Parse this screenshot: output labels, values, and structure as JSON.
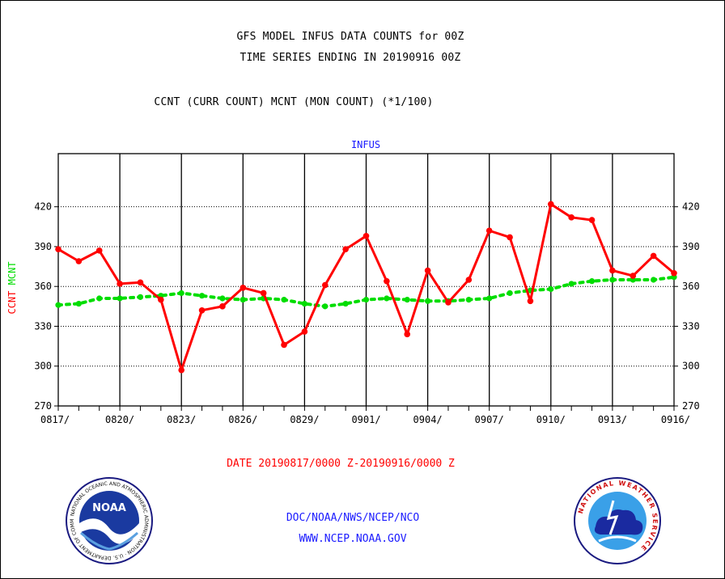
{
  "header": {
    "line1": "GFS MODEL INFUS DATA COUNTS for 00Z",
    "line2": "TIME SERIES ENDING IN 20190916 00Z",
    "line3": "CCNT (CURR COUNT) MCNT (MON COUNT) (*1/100)"
  },
  "panel_title": "INFUS",
  "date_range": "DATE 20190817/0000 Z-20190916/0000 Z",
  "credits": {
    "line1": "DOC/NOAA/NWS/NCEP/NCO",
    "line2": "WWW.NCEP.NOAA.GOV"
  },
  "logos": {
    "left": {
      "icon": "noaa-logo-icon",
      "text": "NOAA",
      "ring_text": "NATIONAL OCEANIC AND ATMOSPHERIC ADMINISTRATION · U.S. DEPARTMENT OF COMMERCE"
    },
    "right": {
      "icon": "nws-logo-icon",
      "ring_text": "NATIONAL WEATHER SERVICE"
    }
  },
  "chart_data": {
    "type": "line",
    "ylabel_series": [
      "CCNT",
      "MCNT"
    ],
    "ylim": [
      270,
      460
    ],
    "yticks": [
      270,
      300,
      330,
      360,
      390,
      420
    ],
    "xlim": [
      0,
      30
    ],
    "x_tick_labels": [
      "0817/",
      "0820/",
      "0823/",
      "0826/",
      "0829/",
      "0901/",
      "0904/",
      "0907/",
      "0910/",
      "0913/",
      "0916/"
    ],
    "x_tick_positions": [
      0,
      3,
      6,
      9,
      12,
      15,
      18,
      21,
      24,
      27,
      30
    ],
    "vertical_grid_every": 3,
    "horizontal_grid": "dotted",
    "series": [
      {
        "name": "CCNT",
        "color": "#ff0000",
        "style": "solid",
        "values": [
          388,
          379,
          387,
          362,
          363,
          350,
          297,
          342,
          345,
          359,
          355,
          316,
          326,
          361,
          388,
          398,
          364,
          324,
          372,
          348,
          365,
          402,
          397,
          349,
          422,
          412,
          410,
          372,
          368,
          383,
          370
        ]
      },
      {
        "name": "MCNT",
        "color": "#00dd00",
        "style": "dotted",
        "values": [
          346,
          347,
          351,
          351,
          352,
          353,
          355,
          353,
          351,
          350,
          351,
          350,
          347,
          345,
          347,
          350,
          351,
          350,
          349,
          349,
          350,
          351,
          355,
          357,
          358,
          362,
          364,
          365,
          365,
          365,
          367
        ]
      }
    ]
  }
}
